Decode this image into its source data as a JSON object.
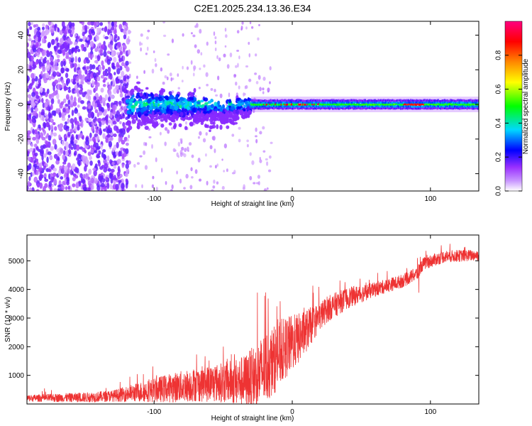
{
  "page_title": "C2E1.2025.234.13.36.E34",
  "colors": {
    "snr_line": "#ee3333",
    "frame": "#000000",
    "spectro_scatter": "#7a2be0"
  },
  "chart_data": [
    {
      "type": "heatmap",
      "name": "spectrogram",
      "title": "C2E1.2025.234.13.36.E34",
      "xlabel": "Height of straight line (km)",
      "ylabel": "Frequency (Hz)",
      "xlim": [
        -192,
        135
      ],
      "ylim": [
        -50,
        48
      ],
      "x_ticks": [
        -100,
        0,
        100
      ],
      "x_tick_labels": [
        "-100",
        "0",
        "100"
      ],
      "y_ticks": [
        -40,
        -20,
        0,
        20,
        40
      ],
      "y_tick_labels": [
        "-40",
        "-20",
        "0",
        "20",
        "40"
      ],
      "colorbar": {
        "label": "Normalized spectral amplitude",
        "range": [
          0.0,
          1.0
        ],
        "ticks": [
          0.0,
          0.2,
          0.4,
          0.6,
          0.8
        ],
        "tick_labels": [
          "0.0",
          "0.2",
          "0.4",
          "0.6",
          "0.8"
        ],
        "colormap": [
          "#ffffff",
          "#9a30ff",
          "#0000ff",
          "#00d8ff",
          "#00ff00",
          "#ffff00",
          "#ff8800",
          "#ff0000",
          "#ff0080"
        ]
      },
      "features": {
        "noise_region_x": [
          -192,
          -118
        ],
        "broadband_center_x": [
          -120,
          -30
        ],
        "narrow_band_x": [
          -30,
          135
        ],
        "band_center_hz": 0,
        "peak_amplitude_region_x": [
          80,
          95
        ]
      }
    },
    {
      "type": "line",
      "name": "snr",
      "title": "",
      "xlabel": "Height of straight line (km)",
      "ylabel": "SNR (10 * v/v)",
      "xlim": [
        -192,
        135
      ],
      "ylim": [
        0,
        5900
      ],
      "x_ticks": [
        -100,
        0,
        100
      ],
      "x_tick_labels": [
        "-100",
        "0",
        "100"
      ],
      "y_ticks": [
        1000,
        2000,
        3000,
        4000,
        5000
      ],
      "y_tick_labels": [
        "1000",
        "2000",
        "3000",
        "4000",
        "5000"
      ],
      "trend": {
        "x": [
          -192,
          -150,
          -130,
          -110,
          -90,
          -70,
          -50,
          -35,
          -25,
          -15,
          -5,
          5,
          15,
          25,
          40,
          60,
          80,
          90,
          95,
          110,
          135
        ],
        "y": [
          200,
          230,
          280,
          420,
          550,
          680,
          750,
          800,
          1000,
          1450,
          1950,
          2300,
          2800,
          3300,
          3700,
          4000,
          4300,
          4550,
          4900,
          5150,
          5200
        ]
      },
      "noise_amplitude": {
        "x": [
          -192,
          -130,
          -90,
          -50,
          -35,
          -20,
          0,
          20,
          60,
          135
        ],
        "y": [
          120,
          200,
          500,
          700,
          900,
          1300,
          1000,
          500,
          250,
          200
        ]
      }
    }
  ]
}
